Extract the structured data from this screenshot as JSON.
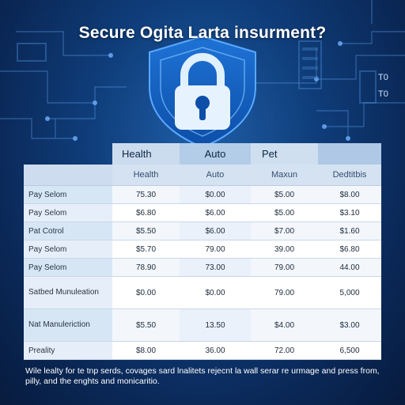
{
  "title": "Secure Ogita Larta insurment?",
  "side_numbers": [
    "T0",
    "T0"
  ],
  "table": {
    "group_headers": [
      "Health",
      "Auto",
      "Pet",
      ""
    ],
    "sub_headers": [
      "",
      "Health",
      "Auto",
      "Maxun",
      "Dedtitbis"
    ],
    "rows": [
      {
        "label": "Pay Selom",
        "values": [
          "75.30",
          "$0.00",
          "$5.00",
          "$8.00"
        ]
      },
      {
        "label": "Pay Selom",
        "values": [
          "$6.80",
          "$6.00",
          "$5.00",
          "$3.10"
        ]
      },
      {
        "label": "Pat Cotrol",
        "values": [
          "$5.50",
          "$6.00",
          "$7.00",
          "$1.60"
        ]
      },
      {
        "label": "Pay Selom",
        "values": [
          "$5.70",
          "79.00",
          "39.00",
          "$6.80"
        ]
      },
      {
        "label": "Pay Selom",
        "values": [
          "78.90",
          "73.00",
          "79.00",
          "44.00"
        ]
      },
      {
        "label": "Satbed Munuleation",
        "values": [
          "$0.00",
          "$0.00",
          "79.00",
          "5,000"
        ]
      },
      {
        "label": "Nat Manuleriction",
        "values": [
          "$5.50",
          "13.50",
          "$4.00",
          "$3.00"
        ]
      },
      {
        "label": "Preality",
        "values": [
          "$8.00",
          "36.00",
          "72.00",
          "6,500"
        ]
      }
    ]
  },
  "footnote": "Wile lealty for te tnp serds, covages sard lnalitets rejecnt la wall serar re urmage and press from, pilly, and the enghts and monicaritio."
}
